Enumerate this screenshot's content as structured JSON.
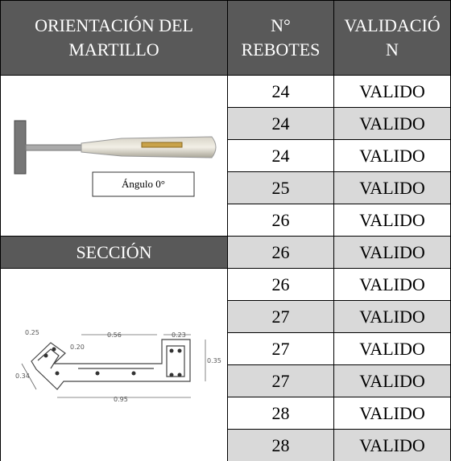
{
  "table": {
    "header": [
      "ORIENTACIÓN DEL MARTILLO",
      "N° REBOTES",
      "VALIDACIÓN"
    ],
    "section_label": "SECCIÓN",
    "hammer_caption": "Ángulo 0°",
    "section_dimensions": [
      "0.25",
      "0.20",
      "0.56",
      "0.23",
      "0.35",
      "0.34",
      "0.95"
    ],
    "rebotes": [
      24,
      24,
      24,
      25,
      26,
      26,
      26,
      27,
      27,
      27,
      28,
      28
    ],
    "validacion": [
      "VALIDO",
      "VALIDO",
      "VALIDO",
      "VALIDO",
      "VALIDO",
      "VALIDO",
      "VALIDO",
      "VALIDO",
      "VALIDO",
      "VALIDO",
      "VALIDO",
      "VALIDO"
    ]
  }
}
